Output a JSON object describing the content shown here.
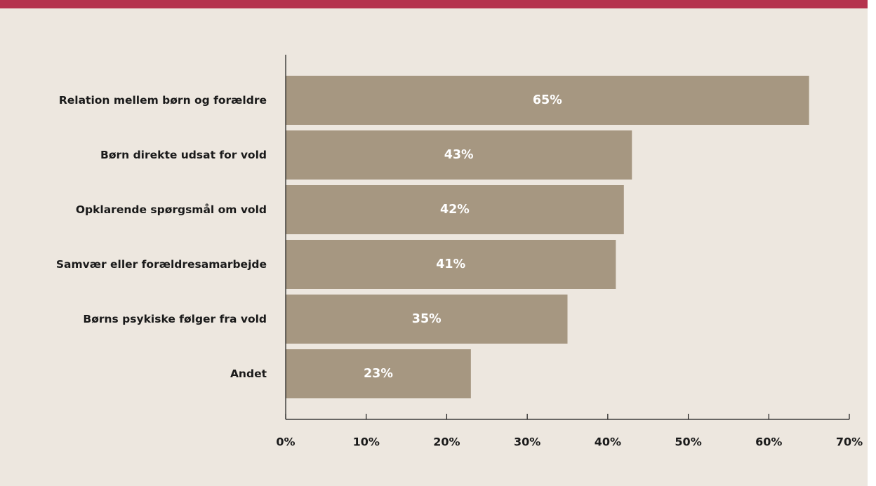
{
  "colors": {
    "top_bar": "#b5334e",
    "background": "#ede7df",
    "bar": "#a69781",
    "axis": "#1a1a1a",
    "data_label": "#ffffff"
  },
  "chart_data": {
    "type": "bar",
    "orientation": "horizontal",
    "categories": [
      "Relation mellem børn og forældre",
      "Børn direkte udsat for vold",
      "Opklarende spørgsmål om vold",
      "Samvær eller forældresamarbejde",
      "Børns psykiske følger fra vold",
      "Andet"
    ],
    "values": [
      65,
      43,
      42,
      41,
      35,
      23
    ],
    "data_labels": [
      "65%",
      "43%",
      "42%",
      "41%",
      "35%",
      "23%"
    ],
    "xlim": [
      0,
      70
    ],
    "x_ticks": [
      0,
      10,
      20,
      30,
      40,
      50,
      60,
      70
    ],
    "x_tick_labels": [
      "0%",
      "10%",
      "20%",
      "30%",
      "40%",
      "50%",
      "60%",
      "70%"
    ],
    "grid": false,
    "legend": "none"
  }
}
